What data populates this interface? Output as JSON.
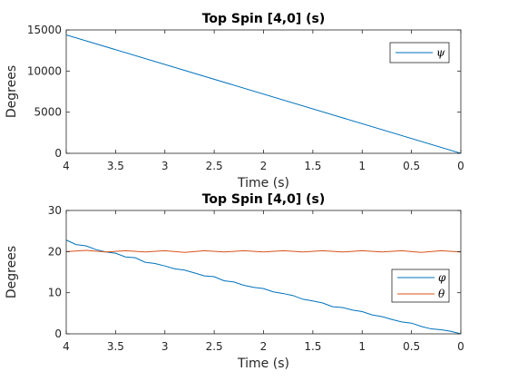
{
  "chart_data": [
    {
      "type": "line",
      "title": "Top Spin [4,0] (s)",
      "xlabel": "Time (s)",
      "ylabel": "Degrees",
      "xlim": [
        4,
        0
      ],
      "ylim": [
        0,
        15000
      ],
      "x_reversed": true,
      "xticks": [
        4,
        3.5,
        3,
        2.5,
        2,
        1.5,
        1,
        0.5,
        0
      ],
      "xtick_labels": [
        "4",
        "3.5",
        "3",
        "2.5",
        "2",
        "1.5",
        "1",
        "0.5",
        "0"
      ],
      "yticks": [
        0,
        5000,
        10000,
        15000
      ],
      "ytick_labels": [
        "0",
        "5000",
        "10000",
        "15000"
      ],
      "legend_position": "top-right",
      "series": [
        {
          "name": "ψ",
          "color": "#0072BD",
          "x": [
            4,
            0
          ],
          "y": [
            14400,
            0
          ]
        }
      ]
    },
    {
      "type": "line",
      "title": "Top Spin [4,0] (s)",
      "xlabel": "Time (s)",
      "ylabel": "Degrees",
      "xlim": [
        4,
        0
      ],
      "ylim": [
        0,
        30
      ],
      "x_reversed": true,
      "xticks": [
        4,
        3.5,
        3,
        2.5,
        2,
        1.5,
        1,
        0.5,
        0
      ],
      "xtick_labels": [
        "4",
        "3.5",
        "3",
        "2.5",
        "2",
        "1.5",
        "1",
        "0.5",
        "0"
      ],
      "yticks": [
        0,
        10,
        20,
        30
      ],
      "ytick_labels": [
        "0",
        "10",
        "20",
        "30"
      ],
      "legend_position": "right",
      "series": [
        {
          "name": "φ",
          "color": "#0072BD",
          "x": [
            4,
            3.9,
            3.8,
            3.7,
            3.6,
            3.5,
            3.4,
            3.3,
            3.2,
            3.1,
            3.0,
            2.9,
            2.8,
            2.7,
            2.6,
            2.5,
            2.4,
            2.3,
            2.2,
            2.1,
            2.0,
            1.9,
            1.8,
            1.7,
            1.6,
            1.5,
            1.4,
            1.3,
            1.2,
            1.1,
            1.0,
            0.9,
            0.8,
            0.7,
            0.6,
            0.5,
            0.4,
            0.3,
            0.2,
            0.1,
            0
          ],
          "y": [
            22.8,
            21.7,
            21.4,
            20.5,
            19.9,
            19.6,
            18.7,
            18.5,
            17.4,
            17.1,
            16.5,
            15.8,
            15.5,
            14.8,
            14.1,
            13.9,
            12.9,
            12.6,
            11.8,
            11.3,
            11.0,
            10.2,
            9.8,
            9.3,
            8.4,
            8.0,
            7.5,
            6.6,
            6.4,
            5.8,
            5.4,
            4.6,
            4.2,
            3.5,
            2.9,
            2.6,
            1.8,
            1.2,
            1.0,
            0.6,
            0.0
          ]
        },
        {
          "name": "θ",
          "color": "#D95319",
          "x": [
            4,
            3.8,
            3.6,
            3.4,
            3.2,
            3.0,
            2.8,
            2.6,
            2.4,
            2.2,
            2.0,
            1.8,
            1.6,
            1.4,
            1.2,
            1.0,
            0.8,
            0.6,
            0.4,
            0.2,
            0
          ],
          "y": [
            20.0,
            20.3,
            19.9,
            20.2,
            19.9,
            20.2,
            19.8,
            20.2,
            19.9,
            20.2,
            19.9,
            20.2,
            19.9,
            20.2,
            19.9,
            20.2,
            19.9,
            20.2,
            19.8,
            20.2,
            19.9
          ]
        }
      ]
    }
  ]
}
